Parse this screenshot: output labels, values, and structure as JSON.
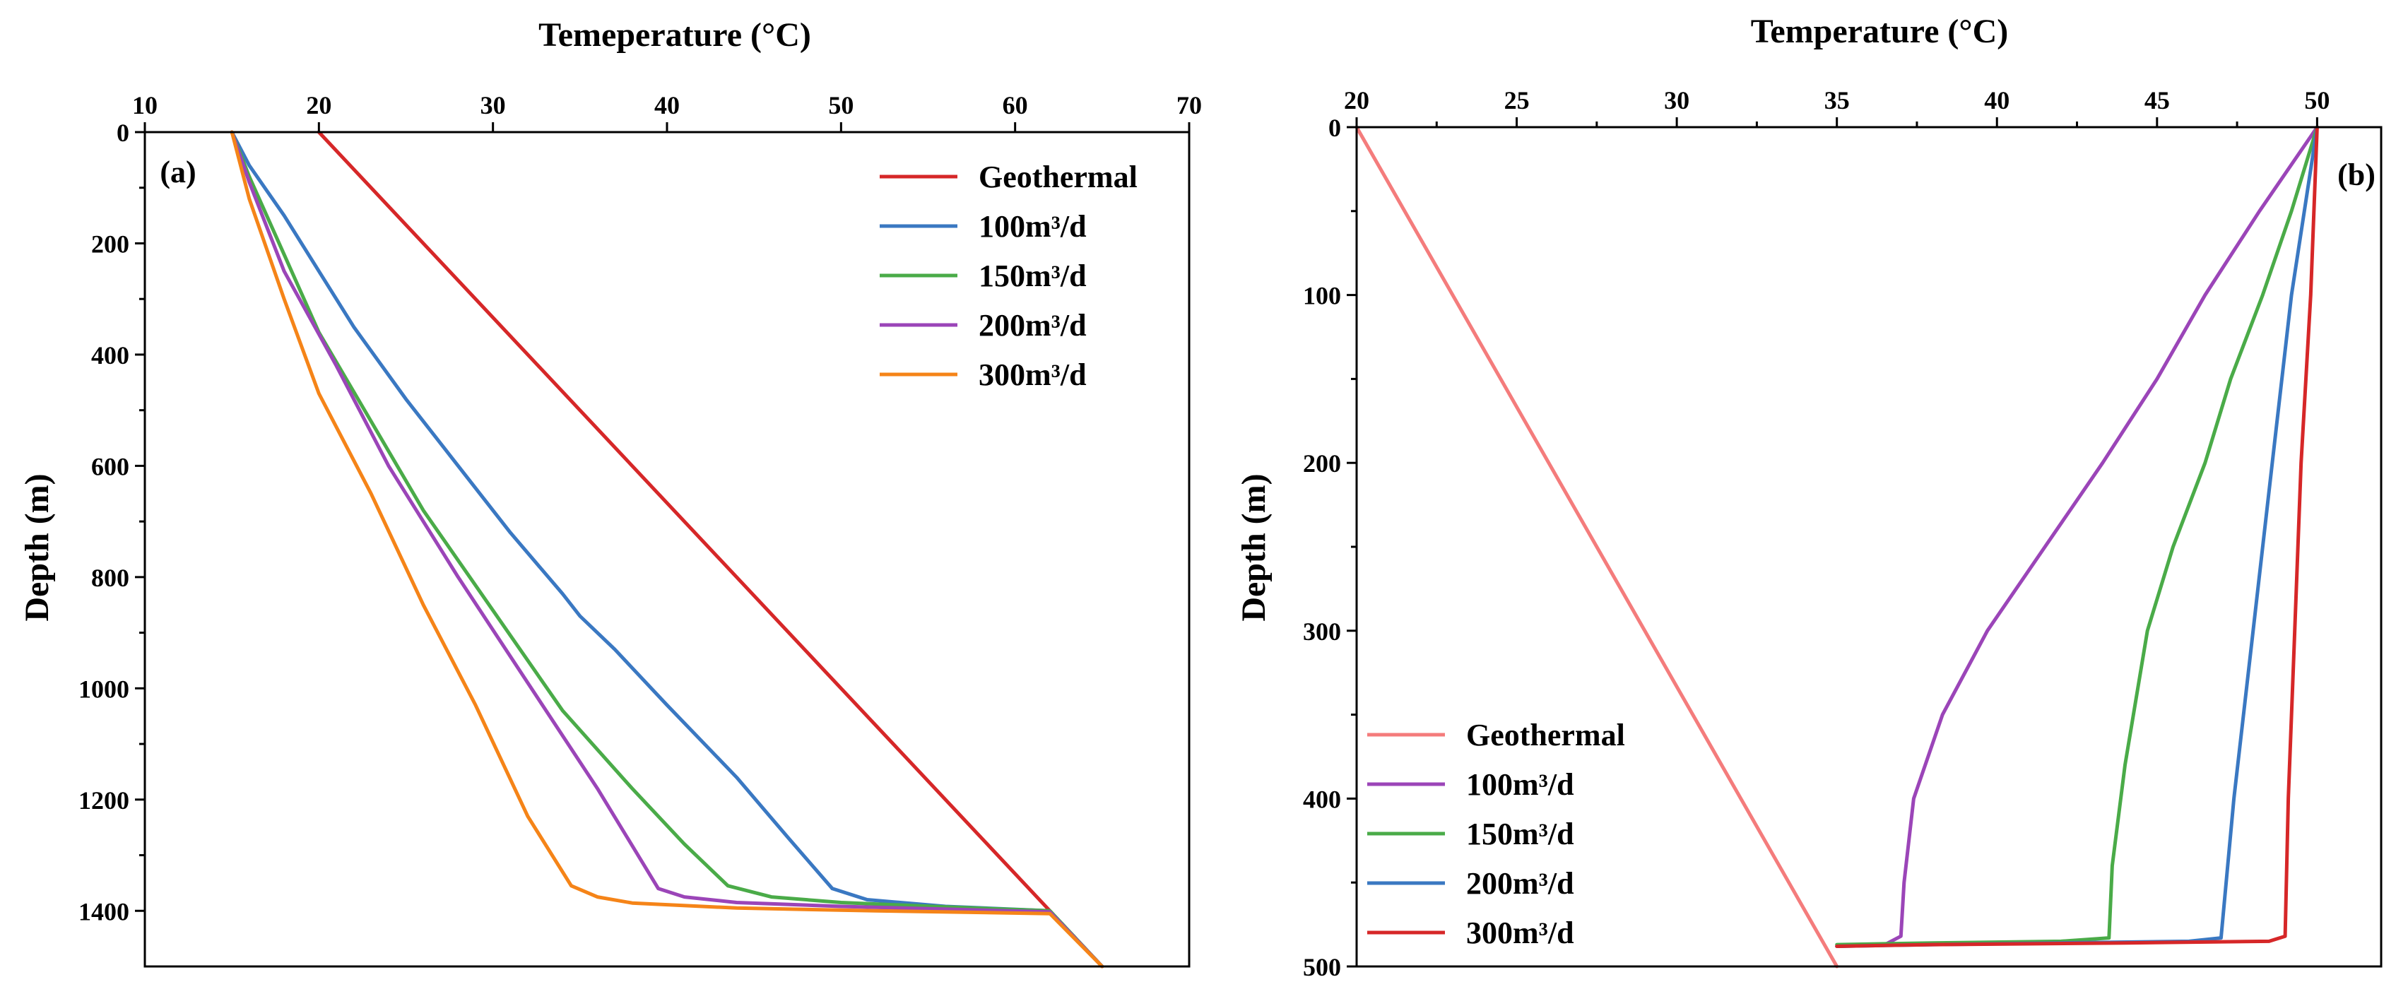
{
  "chart_data": [
    {
      "panel": "(a)",
      "type": "line",
      "xlabel": "Temeperature (°C)",
      "ylabel": "Depth (m)",
      "xaxis_position": "top",
      "yaxis_inverted": true,
      "xlim": [
        10,
        70
      ],
      "ylim": [
        0,
        1500
      ],
      "xticks": [
        10,
        20,
        30,
        40,
        50,
        60,
        70
      ],
      "yticks": [
        0,
        200,
        400,
        600,
        800,
        1000,
        1200,
        1400
      ],
      "legend_position": "top-right",
      "series": [
        {
          "name": "Geothermal",
          "color": "#d62728",
          "points": [
            [
              20,
              0
            ],
            [
              62,
              1400
            ],
            [
              65,
              1500
            ]
          ]
        },
        {
          "name": "100m³/d",
          "color": "#3a78c2",
          "points": [
            [
              15,
              0
            ],
            [
              16,
              60
            ],
            [
              18,
              150
            ],
            [
              20,
              250
            ],
            [
              22,
              350
            ],
            [
              25,
              480
            ],
            [
              28,
              600
            ],
            [
              31,
              720
            ],
            [
              34,
              830
            ],
            [
              35,
              870
            ],
            [
              37,
              930
            ],
            [
              40,
              1030
            ],
            [
              44,
              1160
            ],
            [
              47,
              1270
            ],
            [
              49.5,
              1360
            ],
            [
              51.5,
              1380
            ],
            [
              56,
              1392
            ],
            [
              62,
              1400
            ],
            [
              65,
              1500
            ]
          ]
        },
        {
          "name": "150m³/d",
          "color": "#4aab48",
          "points": [
            [
              15,
              0
            ],
            [
              16,
              80
            ],
            [
              18,
              220
            ],
            [
              20,
              360
            ],
            [
              23,
              520
            ],
            [
              26,
              680
            ],
            [
              30,
              860
            ],
            [
              34,
              1040
            ],
            [
              38,
              1180
            ],
            [
              41,
              1280
            ],
            [
              43.5,
              1355
            ],
            [
              46,
              1375
            ],
            [
              50,
              1385
            ],
            [
              56,
              1393
            ],
            [
              62,
              1400
            ],
            [
              65,
              1500
            ]
          ]
        },
        {
          "name": "200m³/d",
          "color": "#9b45b8",
          "points": [
            [
              15,
              0
            ],
            [
              16,
              90
            ],
            [
              18,
              250
            ],
            [
              21,
              420
            ],
            [
              24,
              600
            ],
            [
              28,
              800
            ],
            [
              32,
              990
            ],
            [
              36,
              1180
            ],
            [
              39.5,
              1360
            ],
            [
              41,
              1375
            ],
            [
              44,
              1385
            ],
            [
              50,
              1392
            ],
            [
              56,
              1397
            ],
            [
              62,
              1402
            ],
            [
              65,
              1500
            ]
          ]
        },
        {
          "name": "300m³/d",
          "color": "#f58418",
          "points": [
            [
              15,
              0
            ],
            [
              16,
              120
            ],
            [
              18,
              300
            ],
            [
              20,
              470
            ],
            [
              23,
              650
            ],
            [
              26,
              850
            ],
            [
              29,
              1030
            ],
            [
              32,
              1230
            ],
            [
              34.5,
              1355
            ],
            [
              36,
              1375
            ],
            [
              38,
              1386
            ],
            [
              44,
              1395
            ],
            [
              52,
              1400
            ],
            [
              62,
              1405
            ],
            [
              65,
              1500
            ]
          ]
        }
      ]
    },
    {
      "panel": "(b)",
      "type": "line",
      "xlabel": "Temperature (°C)",
      "ylabel": "Depth (m)",
      "xaxis_position": "top",
      "yaxis_inverted": true,
      "xlim": [
        20,
        52
      ],
      "ylim": [
        0,
        500
      ],
      "xticks": [
        20,
        25,
        30,
        35,
        40,
        45,
        50
      ],
      "yticks": [
        0,
        100,
        200,
        300,
        400,
        500
      ],
      "legend_position": "bottom-left",
      "series": [
        {
          "name": "Geothermal",
          "color": "#f47c7c",
          "points": [
            [
              20,
              0
            ],
            [
              35,
              500
            ]
          ]
        },
        {
          "name": "100m³/d",
          "color": "#9b45b8",
          "points": [
            [
              50,
              0
            ],
            [
              48.2,
              50
            ],
            [
              46.5,
              100
            ],
            [
              45,
              150
            ],
            [
              43.3,
              200
            ],
            [
              41.5,
              250
            ],
            [
              39.7,
              300
            ],
            [
              38.3,
              350
            ],
            [
              37.4,
              400
            ],
            [
              37.1,
              450
            ],
            [
              37,
              482
            ],
            [
              36.5,
              487
            ],
            [
              35,
              488
            ]
          ]
        },
        {
          "name": "150m³/d",
          "color": "#4aab48",
          "points": [
            [
              50,
              0
            ],
            [
              49.2,
              50
            ],
            [
              48.3,
              100
            ],
            [
              47.3,
              150
            ],
            [
              46.5,
              200
            ],
            [
              45.5,
              250
            ],
            [
              44.7,
              300
            ],
            [
              44,
              380
            ],
            [
              43.6,
              440
            ],
            [
              43.5,
              483
            ],
            [
              42,
              485
            ],
            [
              38,
              486
            ],
            [
              35,
              487
            ]
          ]
        },
        {
          "name": "200m³/d",
          "color": "#3a78c2",
          "points": [
            [
              50,
              0
            ],
            [
              49.6,
              50
            ],
            [
              49.2,
              100
            ],
            [
              48.6,
              200
            ],
            [
              48,
              300
            ],
            [
              47.4,
              400
            ],
            [
              47,
              483
            ],
            [
              46,
              485
            ],
            [
              42,
              486
            ],
            [
              38,
              487
            ],
            [
              35,
              488
            ]
          ]
        },
        {
          "name": "300m³/d",
          "color": "#d62728",
          "points": [
            [
              50,
              0
            ],
            [
              49.8,
              100
            ],
            [
              49.5,
              200
            ],
            [
              49.3,
              300
            ],
            [
              49.1,
              400
            ],
            [
              49,
              482
            ],
            [
              48.5,
              485
            ],
            [
              44,
              486
            ],
            [
              38,
              487
            ],
            [
              35,
              488
            ]
          ]
        }
      ]
    }
  ]
}
